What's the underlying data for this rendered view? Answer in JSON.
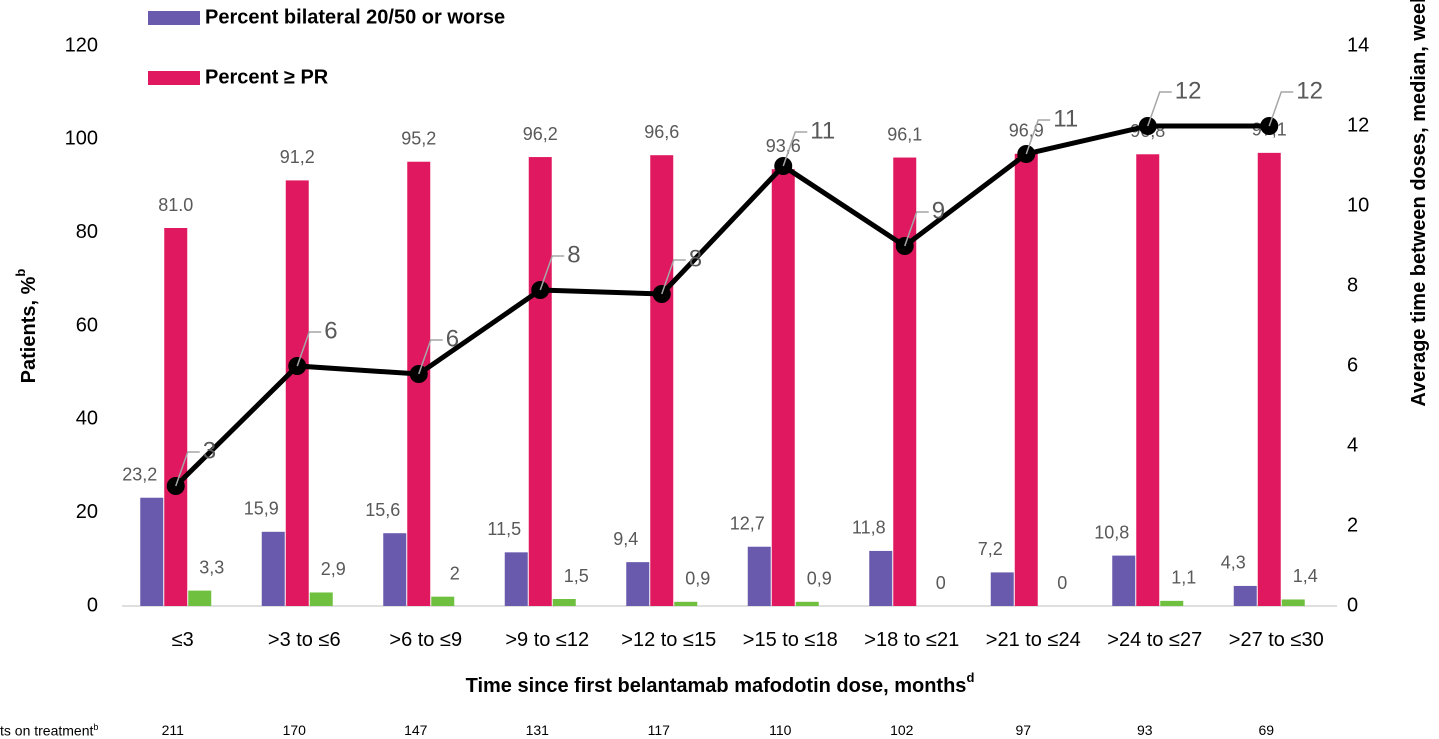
{
  "chart_data": {
    "type": "bar",
    "categories": [
      "≤3",
      ">3 to ≤6",
      ">6 to ≤9",
      ">9 to ≤12",
      ">12 to ≤15",
      ">15 to ≤18",
      ">18 to ≤21",
      ">21 to ≤24",
      ">24 to ≤27",
      ">27 to ≤30"
    ],
    "series": [
      {
        "name": "Percent bilateral 20/50 or worse",
        "color": "#6a5aad",
        "values": [
          23.2,
          15.9,
          15.6,
          11.5,
          9.4,
          12.7,
          11.8,
          7.2,
          10.8,
          4.3
        ],
        "value_labels": [
          "23,2",
          "15,9",
          "15,6",
          "11,5",
          "9,4",
          "12,7",
          "11,8",
          "7,2",
          "10,8",
          "4,3"
        ]
      },
      {
        "name": "Percent ≥ PR",
        "color": "#e0185f",
        "values": [
          81.0,
          91.2,
          95.2,
          96.2,
          96.6,
          93.6,
          96.1,
          96.9,
          96.8,
          97.1
        ],
        "value_labels": [
          "81.0",
          "91,2",
          "95,2",
          "96,2",
          "96,6",
          "93,6",
          "96,1",
          "96,9",
          "96,8",
          "97,1"
        ]
      },
      {
        "color": "#70c040",
        "values": [
          3.3,
          2.9,
          2,
          1.5,
          0.9,
          0.9,
          0,
          0,
          1.1,
          1.4
        ],
        "value_labels": [
          "3,3",
          "2,9",
          "2",
          "1,5",
          "0,9",
          "0,9",
          "0",
          "0",
          "1,1",
          "1,4"
        ]
      },
      {
        "type": "line",
        "axis": "y2",
        "color": "#000000",
        "values": [
          3,
          6,
          5.8,
          7.9,
          7.8,
          11,
          9,
          11.3,
          12,
          12
        ],
        "value_labels": [
          "3",
          "6",
          "6",
          "8",
          "8",
          "11",
          "9",
          "11",
          "12",
          "12"
        ]
      }
    ],
    "ylim": [
      0,
      120
    ],
    "yticks": [
      0,
      20,
      40,
      60,
      80,
      100,
      120
    ],
    "y2lim": [
      0,
      14
    ],
    "y2ticks": [
      0,
      2,
      4,
      6,
      8,
      10,
      12,
      14
    ],
    "ylabel": "Patients, %",
    "ylabel_sup": "b",
    "y2label": "Average time between doses, median, weeks",
    "y2label_sup": "c",
    "xlabel": "Time since first belantamab mafodotin dose, months",
    "xlabel_sup": "d",
    "patients_on_treatment": {
      "label": "ts on treatment",
      "label_sup": "b",
      "values": [
        211,
        170,
        147,
        131,
        117,
        110,
        102,
        97,
        93,
        69
      ]
    }
  }
}
